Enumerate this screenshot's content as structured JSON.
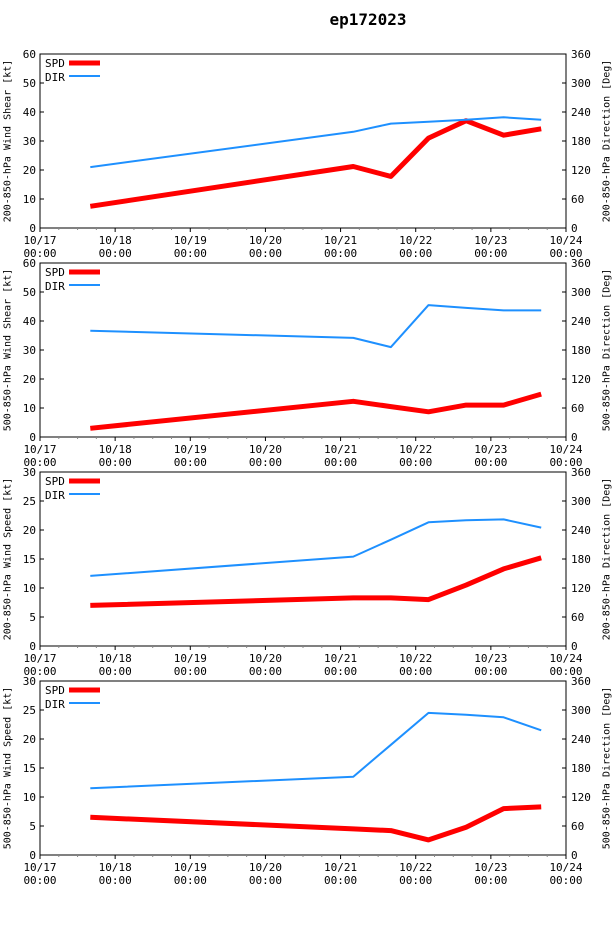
{
  "title": "ep172023",
  "colors": {
    "title": "#1a1aff",
    "spd": "#ff0000",
    "dir": "#1e90ff",
    "axis": "#000000",
    "tick": "#888888"
  },
  "legend": {
    "spd": "SPD",
    "dir": "DIR"
  },
  "chart_data": [
    {
      "type": "line",
      "ylabel": "200-850-hPa Wind Shear [kt]",
      "y2label": "200-850-hPa Direction [Deg]",
      "xlim": [
        0,
        7
      ],
      "ylim": [
        0,
        60
      ],
      "y2lim": [
        0,
        360
      ],
      "yticks": [
        "0",
        "10",
        "20",
        "30",
        "40",
        "50",
        "60"
      ],
      "y2ticks": [
        "0",
        "60",
        "120",
        "180",
        "240",
        "300",
        "360"
      ],
      "xticks": [
        {
          "date": "10/17",
          "time": "00:00"
        },
        {
          "date": "10/18",
          "time": "00:00"
        },
        {
          "date": "10/19",
          "time": "00:00"
        },
        {
          "date": "10/20",
          "time": "00:00"
        },
        {
          "date": "10/21",
          "time": "00:00"
        },
        {
          "date": "10/22",
          "time": "00:00"
        },
        {
          "date": "10/23",
          "time": "00:00"
        },
        {
          "date": "10/24",
          "time": "00:00"
        }
      ],
      "x": [
        0.67,
        4.17,
        4.67,
        5.17,
        5.67,
        6.17,
        6.67
      ],
      "series": [
        {
          "name": "SPD",
          "axis": "left",
          "values": [
            7.5,
            21.2,
            17.8,
            31,
            37,
            32,
            34.2
          ]
        },
        {
          "name": "DIR",
          "axis": "right",
          "values": [
            126,
            199,
            216,
            220,
            224,
            229,
            224
          ]
        }
      ]
    },
    {
      "type": "line",
      "ylabel": "500-850-hPa Wind Shear [kt]",
      "y2label": "500-850-hPa Direction [Deg]",
      "xlim": [
        0,
        7
      ],
      "ylim": [
        0,
        60
      ],
      "y2lim": [
        0,
        360
      ],
      "yticks": [
        "0",
        "10",
        "20",
        "30",
        "40",
        "50",
        "60"
      ],
      "y2ticks": [
        "0",
        "60",
        "120",
        "180",
        "240",
        "300",
        "360"
      ],
      "xticks": [
        {
          "date": "10/17",
          "time": "00:00"
        },
        {
          "date": "10/18",
          "time": "00:00"
        },
        {
          "date": "10/19",
          "time": "00:00"
        },
        {
          "date": "10/20",
          "time": "00:00"
        },
        {
          "date": "10/21",
          "time": "00:00"
        },
        {
          "date": "10/22",
          "time": "00:00"
        },
        {
          "date": "10/23",
          "time": "00:00"
        },
        {
          "date": "10/24",
          "time": "00:00"
        }
      ],
      "x": [
        0.67,
        4.17,
        4.67,
        5.17,
        5.67,
        6.17,
        6.67
      ],
      "series": [
        {
          "name": "SPD",
          "axis": "left",
          "values": [
            3,
            12.3,
            10.5,
            8.7,
            11,
            11,
            14.8
          ]
        },
        {
          "name": "DIR",
          "axis": "right",
          "values": [
            220,
            205,
            186,
            273,
            267,
            262,
            262
          ]
        }
      ]
    },
    {
      "type": "line",
      "ylabel": "200-850-hPa Wind Speed [kt]",
      "y2label": "200-850-hPa Direction [Deg]",
      "xlim": [
        0,
        7
      ],
      "ylim": [
        0,
        30
      ],
      "y2lim": [
        0,
        360
      ],
      "yticks": [
        "0",
        "5",
        "10",
        "15",
        "20",
        "25",
        "30"
      ],
      "y2ticks": [
        "0",
        "60",
        "120",
        "180",
        "240",
        "300",
        "360"
      ],
      "xticks": [
        {
          "date": "10/17",
          "time": "00:00"
        },
        {
          "date": "10/18",
          "time": "00:00"
        },
        {
          "date": "10/19",
          "time": "00:00"
        },
        {
          "date": "10/20",
          "time": "00:00"
        },
        {
          "date": "10/21",
          "time": "00:00"
        },
        {
          "date": "10/22",
          "time": "00:00"
        },
        {
          "date": "10/23",
          "time": "00:00"
        },
        {
          "date": "10/24",
          "time": "00:00"
        }
      ],
      "x": [
        0.67,
        4.17,
        4.67,
        5.17,
        5.67,
        6.17,
        6.67
      ],
      "series": [
        {
          "name": "SPD",
          "axis": "left",
          "values": [
            7,
            8.3,
            8.3,
            8,
            10.5,
            13.3,
            15.2
          ]
        },
        {
          "name": "DIR",
          "axis": "right",
          "values": [
            145,
            185,
            220,
            256,
            260,
            262,
            245
          ]
        }
      ]
    },
    {
      "type": "line",
      "ylabel": "500-850-hPa Wind Speed [kt]",
      "y2label": "500-850-hPa Direction [Deg]",
      "xlim": [
        0,
        7
      ],
      "ylim": [
        0,
        30
      ],
      "y2lim": [
        0,
        360
      ],
      "yticks": [
        "0",
        "5",
        "10",
        "15",
        "20",
        "25",
        "30"
      ],
      "y2ticks": [
        "0",
        "60",
        "120",
        "180",
        "240",
        "300",
        "360"
      ],
      "xticks": [
        {
          "date": "10/17",
          "time": "00:00"
        },
        {
          "date": "10/18",
          "time": "00:00"
        },
        {
          "date": "10/19",
          "time": "00:00"
        },
        {
          "date": "10/20",
          "time": "00:00"
        },
        {
          "date": "10/21",
          "time": "00:00"
        },
        {
          "date": "10/22",
          "time": "00:00"
        },
        {
          "date": "10/23",
          "time": "00:00"
        },
        {
          "date": "10/24",
          "time": "00:00"
        }
      ],
      "x": [
        0.67,
        4.17,
        4.67,
        5.17,
        5.67,
        6.17,
        6.67
      ],
      "series": [
        {
          "name": "SPD",
          "axis": "left",
          "values": [
            6.5,
            4.5,
            4.2,
            2.6,
            4.8,
            8,
            8.3
          ]
        },
        {
          "name": "DIR",
          "axis": "right",
          "values": [
            138,
            162,
            228,
            294,
            290,
            285,
            258
          ]
        }
      ]
    }
  ]
}
